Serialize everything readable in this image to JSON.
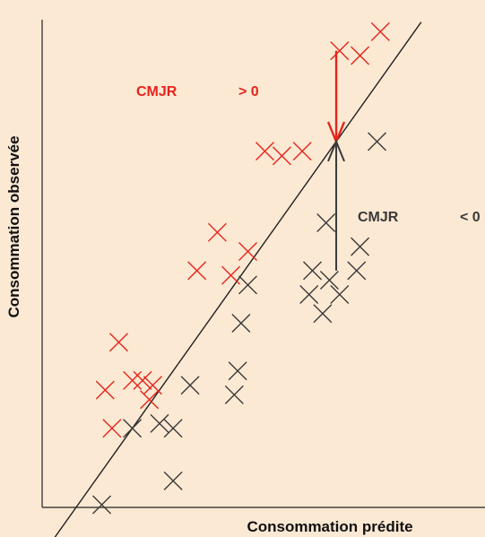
{
  "chart_data": {
    "type": "scatter",
    "xlabel": "Consommation prédite",
    "ylabel": "Consommation observée",
    "xlim": [
      0,
      100
    ],
    "ylim": [
      0,
      100
    ],
    "diagonal_line": {
      "from": [
        0,
        0
      ],
      "to": [
        100,
        100
      ]
    },
    "series": [
      {
        "color": "#e8231c",
        "points": [
          [
            77,
            95
          ],
          [
            89,
            99
          ],
          [
            83,
            94
          ],
          [
            12,
            34
          ],
          [
            8,
            24
          ],
          [
            10,
            16
          ],
          [
            16,
            26
          ],
          [
            19,
            26
          ],
          [
            22,
            25
          ],
          [
            21,
            22
          ],
          [
            35,
            49
          ],
          [
            45,
            48
          ],
          [
            41,
            57
          ],
          [
            50,
            53
          ],
          [
            60,
            73
          ],
          [
            55,
            74
          ],
          [
            66,
            74
          ]
        ]
      },
      {
        "color": "#3a3a3a",
        "points": [
          [
            88,
            76
          ],
          [
            73,
            59
          ],
          [
            83,
            54
          ],
          [
            82,
            49
          ],
          [
            74,
            47
          ],
          [
            77,
            44
          ],
          [
            69,
            49
          ],
          [
            68,
            44
          ],
          [
            72,
            40
          ],
          [
            50,
            46
          ],
          [
            48,
            38
          ],
          [
            33,
            25
          ],
          [
            47,
            28
          ],
          [
            46,
            23
          ],
          [
            16,
            16
          ],
          [
            24,
            17
          ],
          [
            28,
            16
          ],
          [
            28,
            5
          ],
          [
            7,
            0
          ]
        ]
      }
    ],
    "annotations": [
      {
        "text": "CMJR",
        "color": "#e8231c"
      },
      {
        "text": "> 0",
        "color": "#e8231c"
      },
      {
        "text": "CMJR",
        "color": "#3a3a3a"
      },
      {
        "text": "< 0",
        "color": "#3a3a3a"
      }
    ],
    "arrows": [
      {
        "color": "#e8231c",
        "x": 76,
        "from_y": 95,
        "to_y": 76
      },
      {
        "color": "#3a3a3a",
        "x": 76,
        "from_y": 49,
        "to_y": 76
      }
    ],
    "grid": false,
    "legend": "none"
  },
  "colors": {
    "background": "#fbe9d3",
    "positive": "#e8231c",
    "negative": "#3a3a3a",
    "axis": "#222222"
  }
}
